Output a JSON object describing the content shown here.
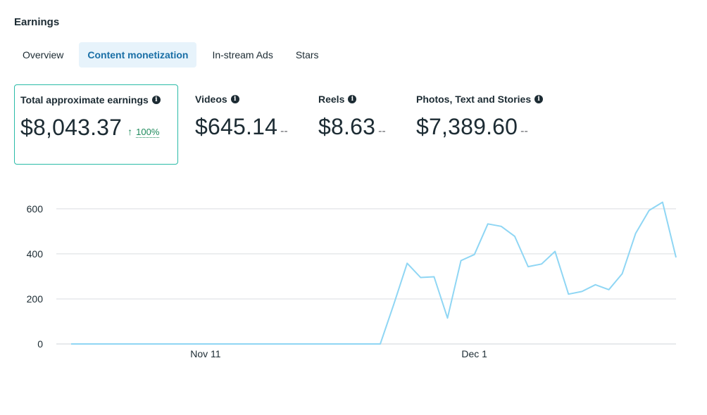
{
  "section": {
    "title": "Earnings"
  },
  "tabs": [
    {
      "label": "Overview",
      "active": false
    },
    {
      "label": "Content monetization",
      "active": true
    },
    {
      "label": "In-stream Ads",
      "active": false
    },
    {
      "label": "Stars",
      "active": false
    }
  ],
  "metrics": {
    "total": {
      "label": "Total approximate earnings",
      "value": "$8,043.37",
      "trend_pct": "100%",
      "trend_direction": "up"
    },
    "videos": {
      "label": "Videos",
      "value": "$645.14",
      "dash": "--"
    },
    "reels": {
      "label": "Reels",
      "value": "$8.63",
      "dash": "--"
    },
    "photos": {
      "label": "Photos, Text and Stories",
      "value": "$7,389.60",
      "dash": "--"
    }
  },
  "colors": {
    "accent": "#1a6fa6",
    "tab_active_bg": "#e7f3fb",
    "card_border": "#2abba7",
    "trend_up": "#1d8a5b",
    "line": "#8fd6f4",
    "grid": "#dadde1"
  },
  "chart_data": {
    "type": "line",
    "x_tick_labels": [
      "Nov 11",
      "Dec 1"
    ],
    "x_tick_day_index": [
      10,
      30
    ],
    "ylim": [
      0,
      640
    ],
    "y_ticks": [
      0,
      200,
      400,
      600
    ],
    "grid": true,
    "series": [
      {
        "values": [
          0,
          0,
          0,
          0,
          0,
          0,
          0,
          0,
          0,
          0,
          0,
          0,
          0,
          0,
          0,
          0,
          0,
          0,
          0,
          0,
          0,
          0,
          0,
          0,
          175,
          358,
          295,
          298,
          115,
          370,
          397,
          533,
          522,
          478,
          343,
          355,
          411,
          221,
          233,
          263,
          241,
          312,
          491,
          593,
          629,
          384
        ]
      }
    ]
  }
}
